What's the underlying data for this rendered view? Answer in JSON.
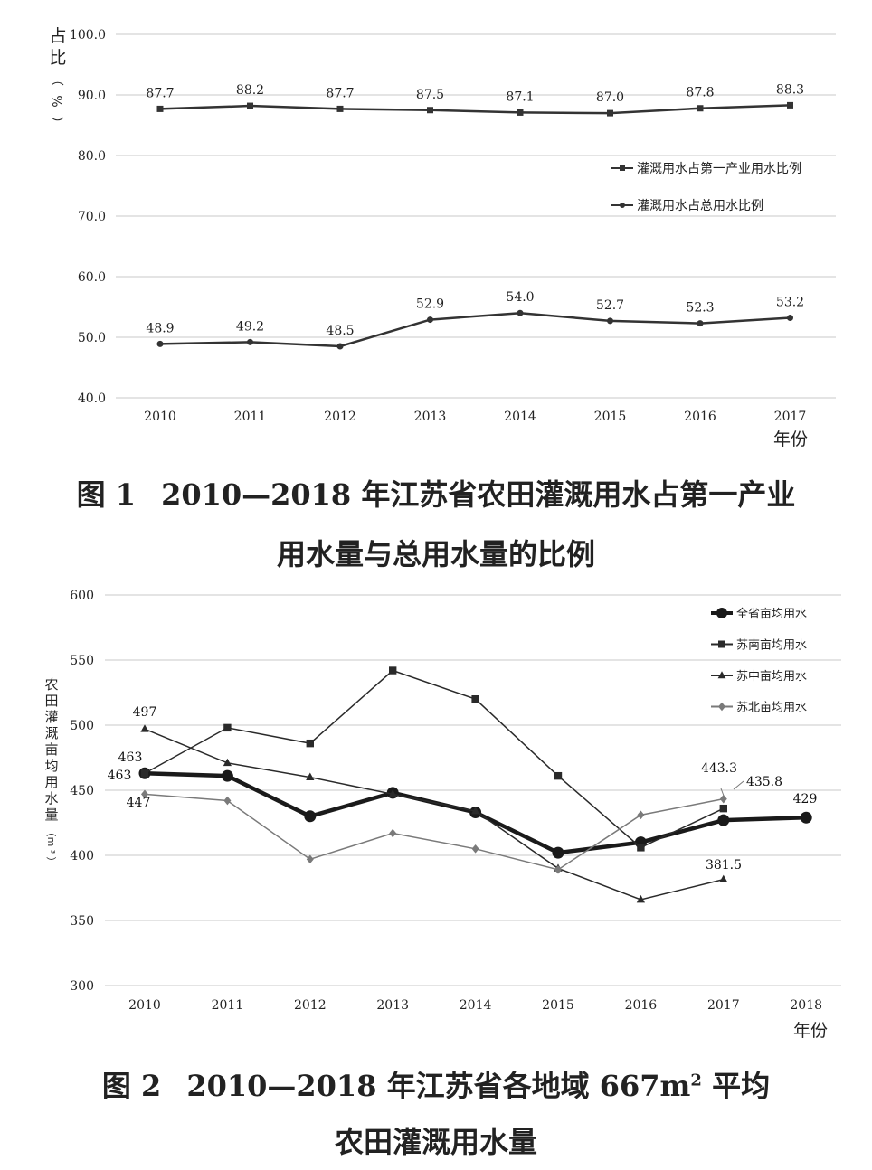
{
  "chart_data": [
    {
      "type": "line",
      "figure_label": "图 1",
      "title_line1": "2010—2018 年江苏省农田灌溉用水占第一产业",
      "title_line2": "用水量与总用水量的比例",
      "ylabel": "占比（%）",
      "xlabel": "年份",
      "ylim": [
        40,
        100
      ],
      "yticks": [
        "100.0",
        "90.0",
        "80.0",
        "70.0",
        "60.0",
        "50.0",
        "40.0"
      ],
      "categories": [
        "2010",
        "2011",
        "2012",
        "2013",
        "2014",
        "2015",
        "2016",
        "2017"
      ],
      "legend_position": "right-middle",
      "grid": true,
      "series": [
        {
          "name": "灌溉用水占第一产业用水比例",
          "marker": "square",
          "color": "#333333",
          "values": [
            87.7,
            88.2,
            87.7,
            87.5,
            87.1,
            87.0,
            87.8,
            88.3
          ],
          "labels": [
            "87.7",
            "88.2",
            "87.7",
            "87.5",
            "87.1",
            "87.0",
            "87.8",
            "88.3"
          ]
        },
        {
          "name": "灌溉用水占总用水比例",
          "marker": "circle",
          "color": "#333333",
          "values": [
            48.9,
            49.2,
            48.5,
            52.9,
            54.0,
            52.7,
            52.3,
            53.2
          ],
          "labels": [
            "48.9",
            "49.2",
            "48.5",
            "52.9",
            "54.0",
            "52.7",
            "52.3",
            "53.2"
          ]
        }
      ]
    },
    {
      "type": "line",
      "figure_label": "图 2",
      "title_line1_prefix": "2010—2018 年江苏省各地域 667m",
      "title_line1_sup": "2",
      "title_line1_suffix": " 平均",
      "title_line2": "农田灌溉用水量",
      "ylabel": "农田灌溉亩均用水量（m³）",
      "xlabel": "年份",
      "ylim": [
        300,
        600
      ],
      "yticks": [
        "600",
        "550",
        "500",
        "450",
        "400",
        "350",
        "300"
      ],
      "categories": [
        "2010",
        "2011",
        "2012",
        "2013",
        "2014",
        "2015",
        "2016",
        "2017",
        "2018"
      ],
      "legend_position": "top-right",
      "grid": true,
      "series": [
        {
          "name": "全省亩均用水",
          "marker": "circle",
          "color": "#1a1a1a",
          "values": [
            463,
            461,
            430,
            448,
            433,
            402,
            410,
            427,
            429
          ]
        },
        {
          "name": "苏南亩均用水",
          "marker": "square",
          "color": "#2a2a2a",
          "values": [
            463,
            498,
            486,
            542,
            520,
            461,
            406,
            436,
            null
          ]
        },
        {
          "name": "苏中亩均用水",
          "marker": "triangle",
          "color": "#2a2a2a",
          "values": [
            497,
            471,
            460,
            447,
            434,
            390,
            366,
            381.5,
            null
          ]
        },
        {
          "name": "苏北亩均用水",
          "marker": "diamond",
          "color": "#7a7a7a",
          "values": [
            447,
            442,
            397,
            417,
            405,
            389,
            431,
            443.3,
            null
          ]
        }
      ],
      "annotations": [
        "497",
        "463",
        "463",
        "447",
        "443.3",
        "435.8",
        "381.5",
        "429"
      ]
    }
  ]
}
